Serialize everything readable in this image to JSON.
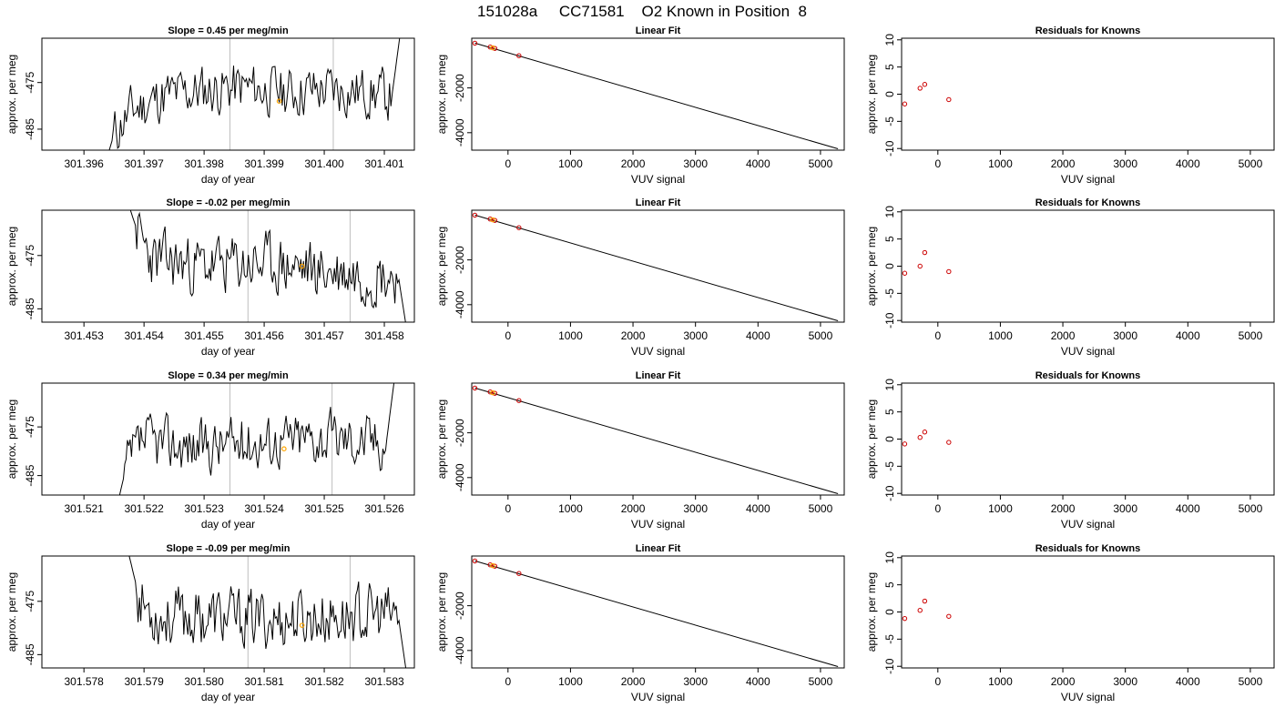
{
  "title": "151028a     CC71581    O2 Known in Position  8",
  "colors": {
    "trace": "#000000",
    "marker_line": "#bebebe",
    "mean_point": "#ffa500",
    "known_point": "#cc0000",
    "residual_point": "#cc0000"
  },
  "chart_data": [
    {
      "type": "line",
      "title": "Slope =  0.45  per meg/min",
      "xlabel": "day of year",
      "ylabel": "approx. per meg",
      "xticks": [
        "301.396",
        "301.397",
        "301.398",
        "301.399",
        "301.400",
        "301.401"
      ],
      "xlim": [
        301.3953,
        301.4015
      ],
      "yticks": [
        "-475",
        "-485"
      ],
      "ylim": [
        -489.5,
        -465.5
      ],
      "trace": {
        "x_start": 301.3963,
        "x_end": 301.4013,
        "seed": 11,
        "segments": [
          [
            0,
            -495
          ],
          [
            0.04,
            -486
          ],
          [
            0.1,
            -481
          ],
          [
            0.2,
            -478
          ],
          [
            0.3,
            -477
          ],
          [
            0.45,
            -476
          ],
          [
            0.6,
            -477
          ],
          [
            0.75,
            -476.5
          ],
          [
            0.88,
            -477
          ],
          [
            0.965,
            -478
          ],
          [
            1,
            -461
          ]
        ]
      },
      "vlines": [
        301.39843,
        301.40015
      ],
      "highlight": {
        "x": 301.39925,
        "y": -479
      },
      "grid": false
    },
    {
      "type": "scatter",
      "title": "Linear Fit",
      "xlabel": "VUV signal",
      "ylabel": "approx. per meg",
      "xticks": [
        "0",
        "1000",
        "2000",
        "3000",
        "4000",
        "5000"
      ],
      "yticks": [
        "-2000",
        "-4000"
      ],
      "xlim": [
        -580,
        5380
      ],
      "ylim": [
        -4780,
        220
      ],
      "fit_line": {
        "x": [
          -530,
          5280
        ],
        "y": [
          0,
          -4720
        ]
      },
      "points": [
        {
          "x": -530,
          "y": 0
        },
        {
          "x": -285,
          "y": -175
        },
        {
          "x": -210,
          "y": -235
        },
        {
          "x": 175,
          "y": -560
        }
      ],
      "highlight": {
        "x": -245,
        "y": -210
      },
      "grid": false
    },
    {
      "type": "scatter",
      "title": "Residuals for Knowns",
      "xlabel": "VUV signal",
      "ylabel": "approx. per meg",
      "xticks": [
        "0",
        "1000",
        "2000",
        "3000",
        "4000",
        "5000"
      ],
      "yticks": [
        "10",
        "5",
        "0",
        "-5",
        "-10"
      ],
      "xlim": [
        -580,
        5380
      ],
      "ylim": [
        -10.3,
        10.3
      ],
      "points": [
        {
          "x": -530,
          "y": -1.8
        },
        {
          "x": -285,
          "y": 1.1
        },
        {
          "x": -210,
          "y": 1.8
        },
        {
          "x": 175,
          "y": -1.0
        }
      ],
      "grid": false
    },
    {
      "type": "line",
      "title": "Slope =  -0.02  per meg/min",
      "xlabel": "day of year",
      "ylabel": "approx. per meg",
      "xticks": [
        "301.453",
        "301.454",
        "301.455",
        "301.456",
        "301.457",
        "301.458"
      ],
      "xlim": [
        301.4523,
        301.4585
      ],
      "yticks": [
        "-475",
        "-485"
      ],
      "ylim": [
        -487.5,
        -466.5
      ],
      "trace": {
        "x_start": 301.4537,
        "x_end": 301.4584,
        "seed": 23,
        "segments": [
          [
            0,
            -464
          ],
          [
            0.05,
            -472
          ],
          [
            0.1,
            -476
          ],
          [
            0.3,
            -477
          ],
          [
            0.5,
            -476.5
          ],
          [
            0.7,
            -478
          ],
          [
            0.9,
            -478.5
          ],
          [
            0.965,
            -479
          ],
          [
            1,
            -491
          ]
        ]
      },
      "vlines": [
        301.45573,
        301.45743
      ],
      "highlight": {
        "x": 301.45663,
        "y": -477
      },
      "grid": false
    },
    {
      "type": "scatter",
      "title": "Linear Fit",
      "xlabel": "VUV signal",
      "ylabel": "approx. per meg",
      "xticks": [
        "0",
        "1000",
        "2000",
        "3000",
        "4000",
        "5000"
      ],
      "yticks": [
        "-2000",
        "-4000"
      ],
      "xlim": [
        -580,
        5380
      ],
      "ylim": [
        -4780,
        220
      ],
      "fit_line": {
        "x": [
          -530,
          5280
        ],
        "y": [
          0,
          -4720
        ]
      },
      "points": [
        {
          "x": -530,
          "y": 0
        },
        {
          "x": -285,
          "y": -175
        },
        {
          "x": -210,
          "y": -235
        },
        {
          "x": 175,
          "y": -560
        }
      ],
      "highlight": {
        "x": -245,
        "y": -210
      },
      "grid": false
    },
    {
      "type": "scatter",
      "title": "Residuals for Knowns",
      "xlabel": "VUV signal",
      "ylabel": "approx. per meg",
      "xticks": [
        "0",
        "1000",
        "2000",
        "3000",
        "4000",
        "5000"
      ],
      "yticks": [
        "10",
        "5",
        "0",
        "-5",
        "-10"
      ],
      "xlim": [
        -580,
        5380
      ],
      "ylim": [
        -10.3,
        10.3
      ],
      "points": [
        {
          "x": -530,
          "y": -1.3
        },
        {
          "x": -285,
          "y": 0.0
        },
        {
          "x": -210,
          "y": 2.5
        },
        {
          "x": 175,
          "y": -1.0
        }
      ],
      "grid": false
    },
    {
      "type": "line",
      "title": "Slope =  0.34  per meg/min",
      "xlabel": "day of year",
      "ylabel": "approx. per meg",
      "xticks": [
        "301.521",
        "301.522",
        "301.523",
        "301.524",
        "301.525",
        "301.526"
      ],
      "xlim": [
        301.5203,
        301.5265
      ],
      "yticks": [
        "-475",
        "-485"
      ],
      "ylim": [
        -489,
        -466
      ],
      "trace": {
        "x_start": 301.5215,
        "x_end": 301.5262,
        "seed": 37,
        "segments": [
          [
            0,
            -494
          ],
          [
            0.04,
            -484
          ],
          [
            0.1,
            -478
          ],
          [
            0.3,
            -479
          ],
          [
            0.5,
            -478
          ],
          [
            0.7,
            -477
          ],
          [
            0.9,
            -477.5
          ],
          [
            0.965,
            -478
          ],
          [
            1,
            -462
          ]
        ]
      },
      "vlines": [
        301.52343,
        301.52513
      ],
      "highlight": {
        "x": 301.52433,
        "y": -479.5
      },
      "grid": false
    },
    {
      "type": "scatter",
      "title": "Linear Fit",
      "xlabel": "VUV signal",
      "ylabel": "approx. per meg",
      "xticks": [
        "0",
        "1000",
        "2000",
        "3000",
        "4000",
        "5000"
      ],
      "yticks": [
        "-2000",
        "-4000"
      ],
      "xlim": [
        -580,
        5380
      ],
      "ylim": [
        -4780,
        220
      ],
      "fit_line": {
        "x": [
          -530,
          5280
        ],
        "y": [
          0,
          -4720
        ]
      },
      "points": [
        {
          "x": -530,
          "y": 0
        },
        {
          "x": -285,
          "y": -175
        },
        {
          "x": -210,
          "y": -235
        },
        {
          "x": 175,
          "y": -560
        }
      ],
      "highlight": {
        "x": -245,
        "y": -210
      },
      "grid": false
    },
    {
      "type": "scatter",
      "title": "Residuals for Knowns",
      "xlabel": "VUV signal",
      "ylabel": "approx. per meg",
      "xticks": [
        "0",
        "1000",
        "2000",
        "3000",
        "4000",
        "5000"
      ],
      "yticks": [
        "10",
        "5",
        "0",
        "-5",
        "-10"
      ],
      "xlim": [
        -580,
        5380
      ],
      "ylim": [
        -10.3,
        10.3
      ],
      "points": [
        {
          "x": -530,
          "y": -0.9
        },
        {
          "x": -285,
          "y": 0.3
        },
        {
          "x": -210,
          "y": 1.3
        },
        {
          "x": 175,
          "y": -0.6
        }
      ],
      "grid": false
    },
    {
      "type": "line",
      "title": "Slope =  -0.09  per meg/min",
      "xlabel": "day of year",
      "ylabel": "approx. per meg",
      "xticks": [
        "301.578",
        "301.579",
        "301.580",
        "301.581",
        "301.582",
        "301.583"
      ],
      "xlim": [
        301.5773,
        301.5835
      ],
      "yticks": [
        "-475",
        "-485"
      ],
      "ylim": [
        -487.5,
        -466.5
      ],
      "trace": {
        "x_start": 301.5787,
        "x_end": 301.5834,
        "seed": 53,
        "segments": [
          [
            0,
            -464
          ],
          [
            0.05,
            -475
          ],
          [
            0.12,
            -478
          ],
          [
            0.3,
            -478
          ],
          [
            0.5,
            -478.5
          ],
          [
            0.7,
            -478
          ],
          [
            0.9,
            -477.5
          ],
          [
            0.965,
            -478
          ],
          [
            1,
            -491
          ]
        ]
      },
      "vlines": [
        301.58073,
        301.58243
      ],
      "highlight": {
        "x": 301.58163,
        "y": -479.5
      },
      "grid": false
    },
    {
      "type": "scatter",
      "title": "Linear Fit",
      "xlabel": "VUV signal",
      "ylabel": "approx. per meg",
      "xticks": [
        "0",
        "1000",
        "2000",
        "3000",
        "4000",
        "5000"
      ],
      "yticks": [
        "-2000",
        "-4000"
      ],
      "xlim": [
        -580,
        5380
      ],
      "ylim": [
        -4780,
        220
      ],
      "fit_line": {
        "x": [
          -530,
          5280
        ],
        "y": [
          0,
          -4720
        ]
      },
      "points": [
        {
          "x": -530,
          "y": 0
        },
        {
          "x": -285,
          "y": -175
        },
        {
          "x": -210,
          "y": -235
        },
        {
          "x": 175,
          "y": -560
        }
      ],
      "highlight": {
        "x": -245,
        "y": -210
      },
      "grid": false
    },
    {
      "type": "scatter",
      "title": "Residuals for Knowns",
      "xlabel": "VUV signal",
      "ylabel": "approx. per meg",
      "xticks": [
        "0",
        "1000",
        "2000",
        "3000",
        "4000",
        "5000"
      ],
      "yticks": [
        "10",
        "5",
        "0",
        "-5",
        "-10"
      ],
      "xlim": [
        -580,
        5380
      ],
      "ylim": [
        -10.3,
        10.3
      ],
      "points": [
        {
          "x": -530,
          "y": -1.2
        },
        {
          "x": -285,
          "y": 0.3
        },
        {
          "x": -210,
          "y": 2.0
        },
        {
          "x": 175,
          "y": -0.8
        }
      ],
      "grid": false
    }
  ]
}
